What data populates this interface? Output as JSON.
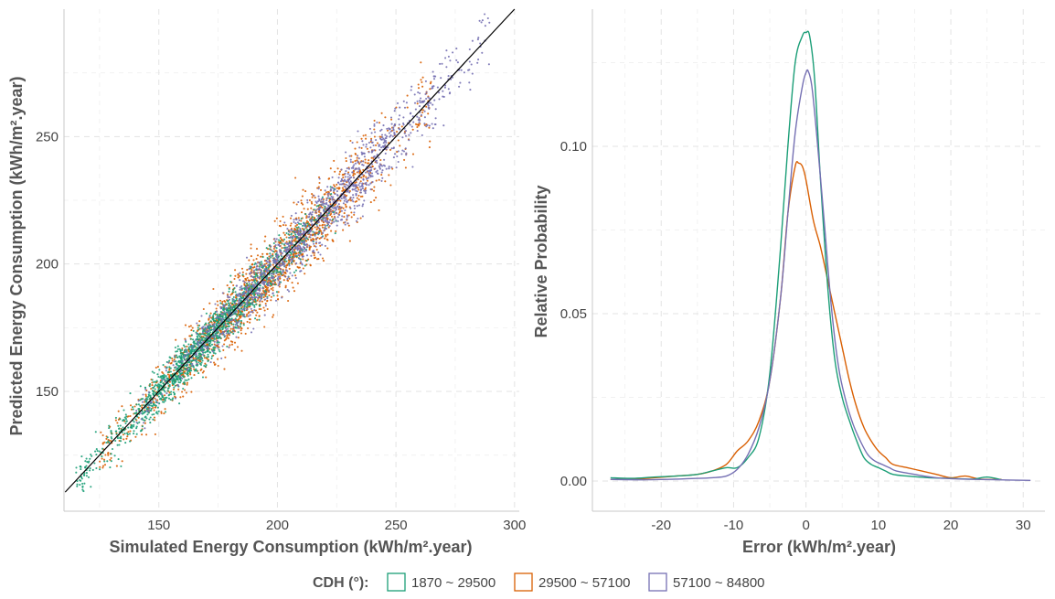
{
  "colors": {
    "s1": "#1b9e77",
    "s2": "#d95f02",
    "s3": "#7570b3",
    "identity": "#000000"
  },
  "legend": {
    "title": "CDH (°):",
    "items": [
      {
        "label": "1870 ~ 29500",
        "color": "#1b9e77"
      },
      {
        "label": "29500 ~ 57100",
        "color": "#d95f02"
      },
      {
        "label": "57100 ~ 84800",
        "color": "#7570b3"
      }
    ]
  },
  "chart_data": [
    {
      "type": "scatter",
      "xlabel": "Simulated Energy Consumption (kWh/m².year)",
      "ylabel": "Predicted Energy Consumption (kWh/m².year)",
      "xlim": [
        110,
        302
      ],
      "ylim": [
        103,
        300
      ],
      "xticks": [
        150,
        200,
        250,
        300
      ],
      "yticks": [
        150,
        200,
        250
      ],
      "identity_line": true,
      "grid": true,
      "series": [
        {
          "name": "1870 ~ 29500",
          "color": "#1b9e77",
          "count": 1500,
          "x_range": [
            115,
            225
          ],
          "spread": 3.5
        },
        {
          "name": "29500 ~ 57100",
          "color": "#d95f02",
          "count": 1600,
          "x_range": [
            125,
            265
          ],
          "spread": 5.0
        },
        {
          "name": "57100 ~ 84800",
          "color": "#7570b3",
          "count": 1300,
          "x_range": [
            140,
            290
          ],
          "spread": 4.0
        }
      ]
    },
    {
      "type": "line",
      "xlabel": "Error (kWh/m².year)",
      "ylabel": "Relative Probability",
      "xlim": [
        -29.5,
        33
      ],
      "ylim": [
        -0.009,
        0.141
      ],
      "xticks": [
        -20,
        -10,
        0,
        10,
        20,
        30
      ],
      "yticks": [
        0.0,
        0.05,
        0.1
      ],
      "ytick_labels": [
        "0.00",
        "0.05",
        "0.10"
      ],
      "grid": true,
      "series": [
        {
          "name": "1870 ~ 29500",
          "color": "#1b9e77",
          "x": [
            -27,
            -24,
            -21,
            -18,
            -15,
            -13,
            -11,
            -9.5,
            -8,
            -6.5,
            -5,
            -3.5,
            -2.5,
            -1.5,
            -0.5,
            0,
            0.5,
            1.2,
            2,
            3,
            4,
            5,
            6,
            7,
            8,
            9,
            10,
            11,
            12,
            14,
            17,
            20,
            23,
            25,
            27
          ],
          "y": [
            0.001,
            0.0008,
            0.0012,
            0.0015,
            0.002,
            0.003,
            0.004,
            0.004,
            0.007,
            0.013,
            0.032,
            0.07,
            0.1,
            0.125,
            0.133,
            0.134,
            0.133,
            0.12,
            0.09,
            0.058,
            0.036,
            0.025,
            0.018,
            0.012,
            0.007,
            0.005,
            0.004,
            0.003,
            0.002,
            0.0015,
            0.001,
            0.0008,
            0.0006,
            0.0012,
            0.0004
          ]
        },
        {
          "name": "29500 ~ 57100",
          "color": "#d95f02",
          "x": [
            -27,
            -24,
            -21,
            -18,
            -15,
            -13,
            -11,
            -9.5,
            -8,
            -6.5,
            -5,
            -3.5,
            -2.5,
            -1.5,
            -1,
            -0.5,
            0,
            1,
            2,
            3,
            4,
            5,
            6,
            7,
            8,
            9,
            10,
            11,
            12,
            14,
            16,
            18,
            20,
            22,
            24,
            27
          ],
          "y": [
            0.0005,
            0.0005,
            0.001,
            0.0015,
            0.002,
            0.003,
            0.005,
            0.009,
            0.012,
            0.018,
            0.03,
            0.055,
            0.08,
            0.094,
            0.095,
            0.094,
            0.09,
            0.078,
            0.07,
            0.06,
            0.05,
            0.04,
            0.03,
            0.022,
            0.016,
            0.012,
            0.009,
            0.007,
            0.005,
            0.004,
            0.003,
            0.002,
            0.001,
            0.0015,
            0.0006,
            0.0005
          ]
        },
        {
          "name": "57100 ~ 84800",
          "color": "#7570b3",
          "x": [
            -27,
            -22,
            -18,
            -15,
            -13,
            -11,
            -9.5,
            -8,
            -6.5,
            -5,
            -3.5,
            -2.5,
            -1.5,
            -0.5,
            0,
            0.3,
            0.8,
            1.5,
            2.5,
            3.5,
            4.5,
            5.5,
            6.5,
            7.5,
            8.5,
            9.5,
            10.5,
            11.5,
            12.5,
            15,
            18,
            22,
            26,
            31
          ],
          "y": [
            0.0005,
            0.0004,
            0.0006,
            0.0008,
            0.001,
            0.0015,
            0.0035,
            0.008,
            0.016,
            0.03,
            0.055,
            0.08,
            0.104,
            0.118,
            0.122,
            0.1225,
            0.118,
            0.103,
            0.078,
            0.052,
            0.034,
            0.024,
            0.017,
            0.012,
            0.008,
            0.006,
            0.005,
            0.004,
            0.003,
            0.002,
            0.001,
            0.0006,
            0.0004,
            0.0002
          ]
        }
      ]
    }
  ]
}
